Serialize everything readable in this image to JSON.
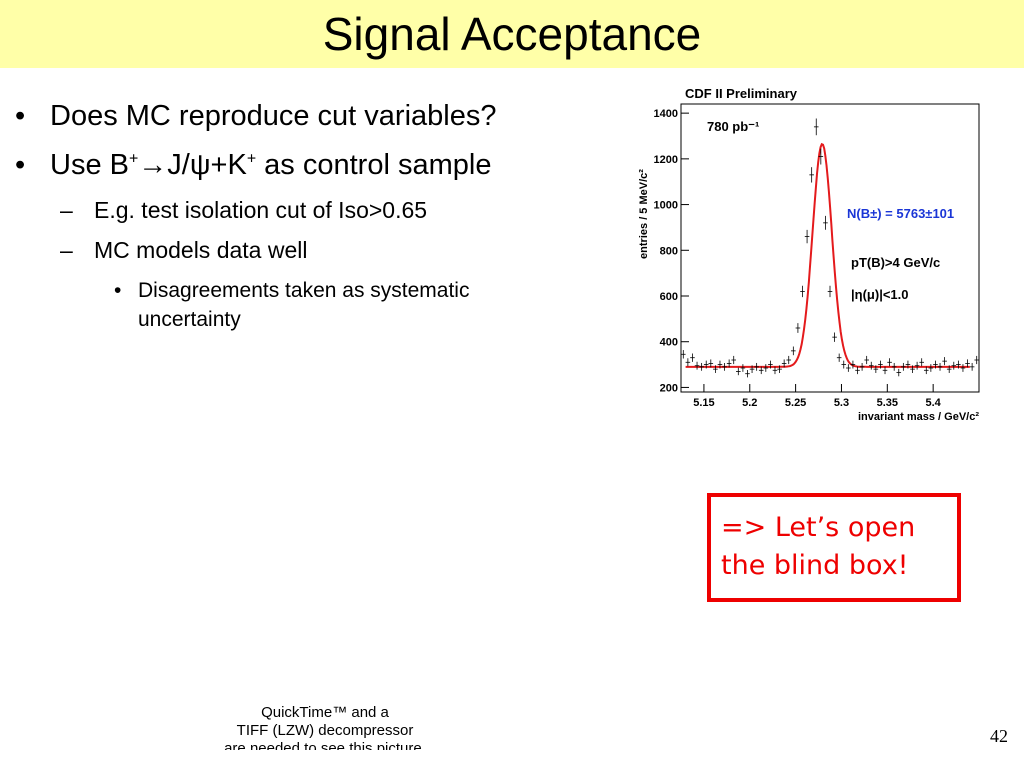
{
  "slide": {
    "title": "Signal Acceptance",
    "page_number": "42",
    "bullets": {
      "b1": "Does MC reproduce cut variables?",
      "b2_pre": "Use B",
      "b2_sup1": "+",
      "b2_arrow": "→",
      "b2_mid": "J/ψ+K",
      "b2_sup2": "+",
      "b2_post": " as control sample",
      "sub1": "E.g. test isolation cut of Iso>0.65",
      "sub2": "MC models data well",
      "subsub1": "Disagreements taken as systematic uncertainty"
    },
    "bullet_marks": {
      "level1": "•",
      "level2": "–",
      "level3": "•"
    },
    "callout": {
      "line1": "=> Let’s open",
      "line2": "the blind box!"
    },
    "placeholder": {
      "line1": "QuickTime™ and a",
      "line2": "TIFF (LZW) decompressor",
      "line3": "are needed to see this picture."
    }
  },
  "chart_data": {
    "type": "scatter",
    "title": "CDF II Preliminary",
    "xlabel": "invariant mass / GeV/c²",
    "ylabel": "entries / 5 MeV/c²",
    "xlim": [
      5.125,
      5.45
    ],
    "ylim": [
      180,
      1440
    ],
    "xticks": [
      5.15,
      5.2,
      5.25,
      5.3,
      5.35,
      5.4
    ],
    "xtick_labels": [
      "5.15",
      "5.2",
      "5.25",
      "5.3",
      "5.35",
      "5.4"
    ],
    "yticks": [
      200,
      400,
      600,
      800,
      1000,
      1200,
      1400
    ],
    "ytick_labels": [
      "200",
      "400",
      "600",
      "800",
      "1000",
      "1200",
      "1400"
    ],
    "annotations": {
      "lumi": "780 pb⁻¹",
      "yield": "N(B±) = 5763±101",
      "pt_cut": "pT(B)>4 GeV/c",
      "eta_cut": "|η(μ)|<1.0"
    },
    "colors": {
      "fit": "#e41a1c",
      "data": "#000000",
      "yield_text": "#1a35d6"
    },
    "series": [
      {
        "name": "data",
        "x": [
          5.1275,
          5.1325,
          5.1375,
          5.1425,
          5.1475,
          5.1525,
          5.1575,
          5.1625,
          5.1675,
          5.1725,
          5.1775,
          5.1825,
          5.1875,
          5.1925,
          5.1975,
          5.2025,
          5.2075,
          5.2125,
          5.2175,
          5.2225,
          5.2275,
          5.2325,
          5.2375,
          5.2425,
          5.2475,
          5.2525,
          5.2575,
          5.2625,
          5.2675,
          5.2725,
          5.2775,
          5.2825,
          5.2875,
          5.2925,
          5.2975,
          5.3025,
          5.3075,
          5.3125,
          5.3175,
          5.3225,
          5.3275,
          5.3325,
          5.3375,
          5.3425,
          5.3475,
          5.3525,
          5.3575,
          5.3625,
          5.3675,
          5.3725,
          5.3775,
          5.3825,
          5.3875,
          5.3925,
          5.3975,
          5.4025,
          5.4075,
          5.4125,
          5.4175,
          5.4225,
          5.4275,
          5.4325,
          5.4375,
          5.4425,
          5.4475
        ],
        "y": [
          345,
          310,
          330,
          295,
          290,
          300,
          305,
          280,
          300,
          290,
          305,
          320,
          270,
          285,
          260,
          280,
          290,
          275,
          285,
          300,
          275,
          280,
          305,
          320,
          360,
          460,
          620,
          860,
          1130,
          1340,
          1210,
          920,
          620,
          420,
          330,
          300,
          285,
          300,
          275,
          290,
          320,
          295,
          280,
          300,
          275,
          310,
          290,
          265,
          290,
          300,
          280,
          295,
          310,
          275,
          285,
          300,
          290,
          315,
          280,
          295,
          300,
          285,
          305,
          290,
          320
        ]
      },
      {
        "name": "fit",
        "peak_mass": 5.279,
        "sigma": 0.0105,
        "amplitude": 975,
        "background": 290
      }
    ]
  }
}
